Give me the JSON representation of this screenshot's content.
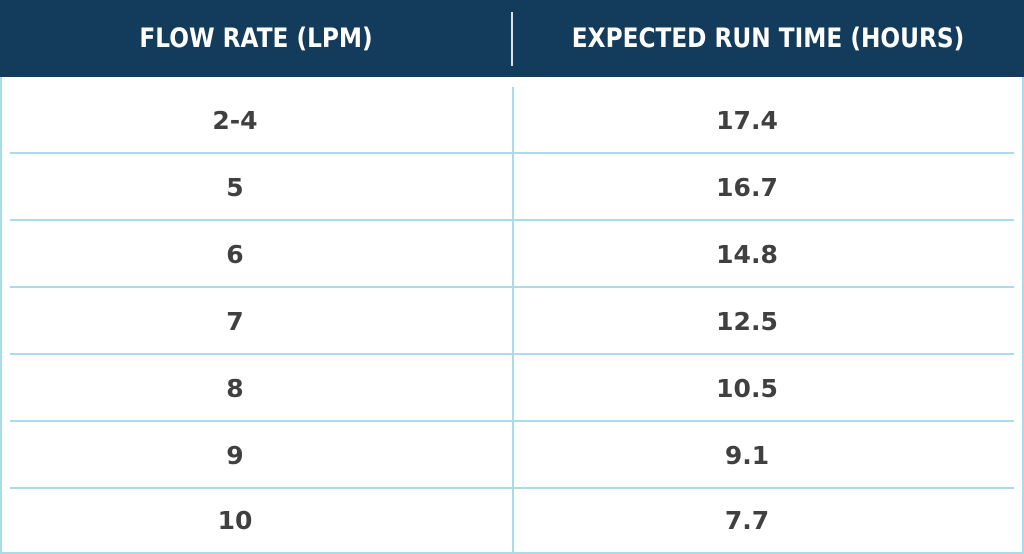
{
  "table": {
    "headers": [
      "FLOW RATE (LPM)",
      "EXPECTED RUN TIME (HOURS)"
    ],
    "rows": [
      [
        "2-4",
        "17.4"
      ],
      [
        "5",
        "16.7"
      ],
      [
        "6",
        "14.8"
      ],
      [
        "7",
        "12.5"
      ],
      [
        "8",
        "10.5"
      ],
      [
        "9",
        "9.1"
      ],
      [
        "10",
        "7.7"
      ]
    ]
  },
  "colors": {
    "header_bg": "#133b5c",
    "header_text": "#ffffff",
    "grid_line": "#a9dbe8",
    "cell_text": "#404040"
  }
}
